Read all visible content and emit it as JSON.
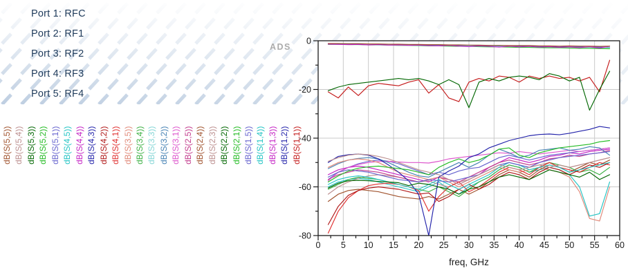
{
  "watermark": {
    "text": "ADS",
    "color": "#ABABAB"
  },
  "ports": {
    "color": "#1F3B5B",
    "items": [
      "Port 1: RFC",
      "Port 2: RF1",
      "Port 3: RF2",
      "Port 4: RF3",
      "Port 5: RF4"
    ]
  },
  "theme": {
    "stripe_color": "#b7c9de",
    "grid_color": "#c9c9c9",
    "frame_color": "#1a1a1a",
    "axis_text_color": "#1a1a1a"
  },
  "chart_data": {
    "type": "line",
    "title": "",
    "xlabel": "freq, GHz",
    "ylabel": "",
    "xlim": [
      0,
      60
    ],
    "ylim": [
      -80,
      0
    ],
    "grid": true,
    "x_ticks": [
      0,
      5,
      10,
      15,
      20,
      25,
      30,
      35,
      40,
      45,
      50,
      55,
      60
    ],
    "x_minor_ticks": [
      2.5,
      7.5,
      12.5,
      17.5,
      22.5,
      27.5,
      32.5,
      37.5,
      42.5,
      47.5,
      52.5,
      57.5
    ],
    "y_ticks": [
      0,
      -20,
      -40,
      -60,
      -80
    ],
    "y_minor_ticks": [
      -10,
      -30,
      -50,
      -70
    ],
    "legend_position": "left-rotated",
    "x": [
      2,
      4,
      6,
      8,
      10,
      12,
      14,
      16,
      18,
      20,
      22,
      24,
      26,
      28,
      30,
      32,
      34,
      36,
      38,
      40,
      42,
      44,
      46,
      48,
      50,
      52,
      54,
      56,
      58
    ],
    "series": [
      {
        "name": "dB(S(1,1))",
        "color": "#C41A1A",
        "values": [
          -21,
          -23.5,
          -19,
          -22.5,
          -18.5,
          -17.5,
          -18,
          -18.5,
          -17,
          -16,
          -21.5,
          -18,
          -23.5,
          -25,
          -17,
          -15.5,
          -16.5,
          -14.5,
          -15,
          -17,
          -14.5,
          -15.5,
          -14.5,
          -15.5,
          -15,
          -16.5,
          -15,
          -21,
          -8
        ]
      },
      {
        "name": "dB(S(1,2))",
        "color": "#2222AA",
        "values": [
          -1.3,
          -1.3,
          -1.4,
          -1.4,
          -1.5,
          -1.5,
          -1.6,
          -1.6,
          -1.7,
          -1.7,
          -1.8,
          -1.8,
          -1.9,
          -1.9,
          -2,
          -2,
          -2.1,
          -2.1,
          -2.2,
          -2.2,
          -2.3,
          -2.3,
          -2.4,
          -2.4,
          -2.5,
          -2.5,
          -2.6,
          -2.6,
          -2.7
        ]
      },
      {
        "name": "dB(S(1,3))",
        "color": "#C422C4",
        "values": [
          -55,
          -53,
          -52,
          -51.5,
          -52,
          -53,
          -54,
          -55,
          -56,
          -57,
          -58,
          -56,
          -57,
          -59,
          -57,
          -55,
          -52,
          -50,
          -48,
          -49,
          -50,
          -49,
          -47.5,
          -47,
          -46,
          -46.5,
          -45.5,
          -45,
          -44.5
        ]
      },
      {
        "name": "dB(S(1,4))",
        "color": "#22C4C4",
        "values": [
          -60,
          -58,
          -57,
          -56.5,
          -57,
          -58,
          -59,
          -60,
          -61,
          -62,
          -60,
          -58,
          -61,
          -63,
          -60,
          -58,
          -56,
          -53,
          -51,
          -52,
          -54,
          -53,
          -52,
          -53,
          -55,
          -60,
          -72,
          -71,
          -58
        ]
      },
      {
        "name": "dB(S(1,5))",
        "color": "#6663CE",
        "values": [
          -57,
          -54,
          -52,
          -50.5,
          -49.5,
          -49,
          -49.5,
          -50.5,
          -52,
          -53.5,
          -55,
          -54,
          -55,
          -53.5,
          -52.5,
          -52,
          -50,
          -48,
          -47,
          -48,
          -49,
          -48,
          -47,
          -46.5,
          -46,
          -45.5,
          -45,
          -44.5,
          -44
        ]
      },
      {
        "name": "dB(S(2,1))",
        "color": "#22BB22",
        "values": [
          -1.5,
          -1.5,
          -1.6,
          -1.6,
          -1.7,
          -1.7,
          -1.8,
          -1.9,
          -1.9,
          -2,
          -2.1,
          -2.1,
          -2.2,
          -2.3,
          -2.3,
          -2.4,
          -2.5,
          -2.5,
          -2.6,
          -2.7,
          -2.7,
          -2.8,
          -2.9,
          -2.9,
          -3,
          -3.1,
          -3.1,
          -3.2,
          -3.3
        ]
      },
      {
        "name": "dB(S(2,2))",
        "color": "#006600",
        "values": [
          -20.5,
          -19,
          -18,
          -17.5,
          -17,
          -16.5,
          -16,
          -15.5,
          -16,
          -15.5,
          -16.5,
          -18,
          -16,
          -18,
          -27.5,
          -17,
          -15.5,
          -16.5,
          -15,
          -14.5,
          -15,
          -16,
          -13.5,
          -14.5,
          -16.5,
          -15,
          -28.5,
          -20,
          -12.5
        ]
      },
      {
        "name": "dB(S(2,3))",
        "color": "#BC8F8F",
        "values": [
          -63,
          -60,
          -58,
          -56.5,
          -55.5,
          -55,
          -55.5,
          -56,
          -57,
          -58,
          -57.5,
          -59,
          -60,
          -58,
          -57,
          -55,
          -53,
          -51,
          -50,
          -51,
          -52,
          -51,
          -50,
          -51,
          -52,
          -51,
          -50,
          -49,
          -48
        ]
      },
      {
        "name": "dB(S(2,4))",
        "color": "#A0522D",
        "values": [
          -66,
          -63,
          -61.5,
          -61,
          -61.5,
          -62,
          -63,
          -64,
          -64.5,
          -65,
          -64,
          -65,
          -63,
          -61,
          -63,
          -61,
          -58,
          -55,
          -53,
          -54,
          -56,
          -53,
          -51,
          -52,
          -54,
          -52,
          -50,
          -51,
          -49
        ]
      },
      {
        "name": "dB(S(2,5))",
        "color": "#C23A8C",
        "values": [
          -57,
          -55,
          -54,
          -53,
          -53.5,
          -54,
          -55,
          -56,
          -57,
          -58,
          -57,
          -56,
          -57,
          -58,
          -56,
          -54,
          -52,
          -50,
          -49,
          -50,
          -51,
          -50,
          -48.5,
          -48,
          -47,
          -47.5,
          -46.5,
          -46,
          -45
        ]
      },
      {
        "name": "dB(S(3,1))",
        "color": "#DD55CC",
        "values": [
          -57.5,
          -54,
          -52,
          -50.8,
          -50,
          -49.6,
          -49.5,
          -49.8,
          -50,
          -50,
          -50.2,
          -49.5,
          -48.5,
          -48,
          -47.5,
          -47,
          -46.5,
          -46,
          -46.2,
          -45.5,
          -46,
          -46.5,
          -46,
          -45.5,
          -45,
          -45.5,
          -45,
          -44.5,
          -44
        ]
      },
      {
        "name": "dB(S(3,2))",
        "color": "#4682B4",
        "values": [
          -52.5,
          -50.5,
          -49,
          -48.3,
          -48,
          -48.5,
          -50,
          -52,
          -54,
          -55.5,
          -56,
          -54,
          -52,
          -50,
          -52,
          -50,
          -47,
          -44.5,
          -46,
          -48,
          -47,
          -45,
          -44.5,
          -44,
          -45,
          -44.5,
          -43.5,
          -44,
          -47
        ]
      },
      {
        "name": "dB(S(3,3))",
        "color": "#85D6D6",
        "values": [
          -1.4,
          -1.5,
          -1.5,
          -1.6,
          -1.6,
          -1.7,
          -1.7,
          -1.8,
          -1.8,
          -1.9,
          -1.9,
          -2,
          -2,
          -2.1,
          -2.1,
          -2.2,
          -2.2,
          -2.3,
          -2.3,
          -2.4,
          -2.4,
          -2.5,
          -2.5,
          -2.6,
          -2.6,
          -2.7,
          -2.7,
          -2.8,
          -2.8
        ]
      },
      {
        "name": "dB(S(3,4))",
        "color": "#3CB043",
        "values": [
          -61,
          -59,
          -57,
          -56,
          -56.5,
          -57,
          -58,
          -59,
          -60,
          -61,
          -62,
          -60,
          -62,
          -64,
          -61,
          -58,
          -56,
          -53,
          -51,
          -52,
          -54,
          -52,
          -50,
          -51,
          -52,
          -54,
          -53,
          -55,
          -52
        ]
      },
      {
        "name": "dB(S(3,5))",
        "color": "#E08878",
        "values": [
          -52,
          -50,
          -49,
          -48.5,
          -49,
          -50,
          -52,
          -54,
          -55,
          -56,
          -57,
          -56,
          -58,
          -60,
          -58,
          -56,
          -54,
          -52,
          -53,
          -54,
          -53,
          -52,
          -53,
          -54,
          -56,
          -62,
          -73,
          -74,
          -60
        ]
      },
      {
        "name": "dB(S(4,1))",
        "color": "#E03030",
        "values": [
          -79,
          -70,
          -64.5,
          -61.5,
          -59.5,
          -58.8,
          -58.5,
          -59,
          -60,
          -61.5,
          -70,
          -64,
          -60,
          -58,
          -62,
          -60,
          -57,
          -54,
          -52,
          -53,
          -55,
          -52,
          -50,
          -52,
          -53,
          -54,
          -52,
          -50,
          -51
        ]
      },
      {
        "name": "dB(S(4,2))",
        "color": "#B01818",
        "values": [
          -75.5,
          -68,
          -63.5,
          -61.5,
          -60.5,
          -60,
          -60.5,
          -61,
          -62,
          -63,
          -62.5,
          -66,
          -64,
          -61,
          -59,
          -61,
          -59,
          -56,
          -54,
          -55,
          -57,
          -54,
          -52,
          -53,
          -55,
          -53,
          -51,
          -52,
          -50
        ]
      },
      {
        "name": "dB(S(4,3))",
        "color": "#2222AA",
        "values": [
          -50,
          -47.5,
          -46.8,
          -46.5,
          -47,
          -48.5,
          -51,
          -54,
          -57.5,
          -63,
          -80,
          -56,
          -53.5,
          -51.5,
          -48,
          -46.5,
          -44,
          -42.5,
          -41,
          -40,
          -39,
          -38.5,
          -38.3,
          -38.6,
          -38,
          -37.2,
          -36.4,
          -35.2,
          -35.8
        ]
      },
      {
        "name": "dB(S(4,4))",
        "color": "#C422C4",
        "values": [
          -1.4,
          -1.5,
          -1.6,
          -1.5,
          -1.7,
          -1.6,
          -1.8,
          -1.7,
          -1.9,
          -1.8,
          -2,
          -2.1,
          -1.9,
          -2.2,
          -2.4,
          -2.1,
          -2.3,
          -2.6,
          -2.2,
          -2.5,
          -2.3,
          -2.6,
          -2.4,
          -2.7,
          -2.5,
          -2.8,
          -2.4,
          -3,
          -2.2
        ]
      },
      {
        "name": "dB(S(4,5))",
        "color": "#22C4C4",
        "values": [
          -59,
          -57,
          -56,
          -55.5,
          -56,
          -57,
          -58,
          -59,
          -60,
          -61,
          -59,
          -57,
          -59,
          -61,
          -59,
          -57,
          -55,
          -52,
          -50,
          -51,
          -53,
          -52,
          -51,
          -52,
          -54,
          -53,
          -52,
          -51,
          -50
        ]
      },
      {
        "name": "dB(S(5,1))",
        "color": "#6663CE",
        "values": [
          -56,
          -54,
          -53,
          -53.5,
          -54,
          -55,
          -56,
          -57,
          -57.5,
          -58,
          -57,
          -57.5,
          -58,
          -57,
          -56,
          -55,
          -53,
          -51,
          -50,
          -51,
          -52,
          -50,
          -49,
          -48,
          -47.5,
          -47,
          -46.5,
          -46,
          -45.5
        ]
      },
      {
        "name": "dB(S(5,2))",
        "color": "#22BB22",
        "values": [
          -58,
          -55.5,
          -53.5,
          -52.3,
          -51.8,
          -51.5,
          -52,
          -52.5,
          -53,
          -54,
          -55,
          -52,
          -50,
          -48.5,
          -50,
          -49,
          -47,
          -44.5,
          -44,
          -47,
          -48,
          -46,
          -45,
          -44,
          -43.5,
          -43,
          -42.5,
          -41.5,
          -41
        ]
      },
      {
        "name": "dB(S(5,3))",
        "color": "#006600",
        "values": [
          -60.5,
          -58.5,
          -57.5,
          -57.3,
          -57.5,
          -57.8,
          -58,
          -58.3,
          -59.5,
          -58.5,
          -59,
          -60,
          -61,
          -63,
          -61,
          -60,
          -58,
          -56,
          -55,
          -56,
          -57,
          -55,
          -53,
          -54,
          -55,
          -56,
          -54,
          -57,
          -55
        ]
      },
      {
        "name": "dB(S(5,4))",
        "color": "#BC8F8F",
        "values": [
          -49.5,
          -48,
          -47,
          -46.5,
          -46.8,
          -47.5,
          -48.5,
          -50,
          -51.5,
          -53,
          -54,
          -55,
          -57,
          -59,
          -57,
          -55,
          -53,
          -51,
          -52,
          -53,
          -52,
          -51,
          -52,
          -51,
          -52,
          -51,
          -50,
          -49,
          -48
        ]
      },
      {
        "name": "dB(S(5,5))",
        "color": "#A0522D",
        "values": [
          -1.1,
          -1.1,
          -1.2,
          -1.2,
          -1.3,
          -1.3,
          -1.4,
          -1.4,
          -1.5,
          -1.5,
          -1.6,
          -1.6,
          -1.7,
          -1.7,
          -1.8,
          -1.8,
          -1.9,
          -1.9,
          -2,
          -2,
          -2,
          -2.1,
          -2.1,
          -2.2,
          -2.1,
          -2.2,
          -2.2,
          -2.3,
          -2.2
        ]
      }
    ]
  }
}
